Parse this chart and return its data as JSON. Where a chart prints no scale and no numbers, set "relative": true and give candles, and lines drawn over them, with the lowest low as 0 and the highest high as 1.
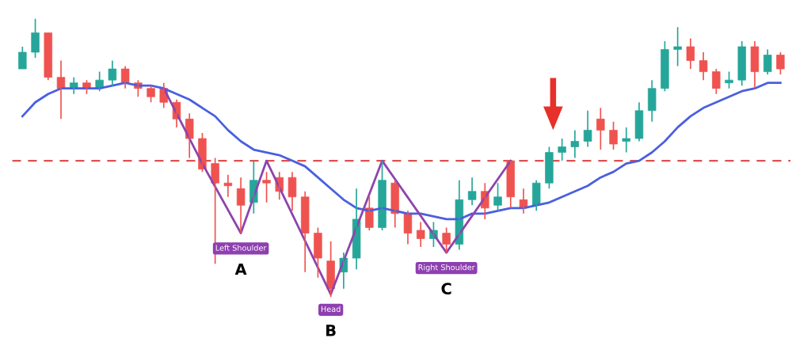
{
  "chart_data": {
    "type": "candlestick",
    "relative": true,
    "categories": [
      null,
      null,
      null,
      null,
      null,
      null,
      null,
      null,
      null,
      null,
      null,
      null,
      null,
      null,
      null,
      null,
      null,
      null,
      null,
      null,
      null,
      null,
      null,
      null,
      null,
      null,
      null,
      null,
      null,
      null,
      null,
      null,
      null,
      null,
      null,
      null,
      null,
      null,
      null,
      null,
      null,
      null,
      null,
      null,
      null,
      null,
      null,
      null,
      null,
      null,
      null,
      null,
      null,
      null,
      null,
      null,
      null,
      null,
      null,
      null
    ],
    "ohlc": [
      [
        0.82,
        0.9,
        0.82,
        0.88
      ],
      [
        0.88,
        1.0,
        0.86,
        0.95
      ],
      [
        0.95,
        0.95,
        0.78,
        0.79
      ],
      [
        0.79,
        0.85,
        0.64,
        0.75
      ],
      [
        0.75,
        0.79,
        0.73,
        0.77
      ],
      [
        0.77,
        0.78,
        0.73,
        0.75
      ],
      [
        0.75,
        0.81,
        0.74,
        0.78
      ],
      [
        0.78,
        0.85,
        0.76,
        0.82
      ],
      [
        0.82,
        0.83,
        0.75,
        0.77
      ],
      [
        0.77,
        0.78,
        0.72,
        0.75
      ],
      [
        0.75,
        0.76,
        0.7,
        0.72
      ],
      [
        0.75,
        0.77,
        0.68,
        0.7
      ],
      [
        0.7,
        0.71,
        0.61,
        0.64
      ],
      [
        0.64,
        0.66,
        0.5,
        0.57
      ],
      [
        0.57,
        0.59,
        0.45,
        0.46
      ],
      [
        0.48,
        0.5,
        0.12,
        0.41
      ],
      [
        0.41,
        0.44,
        0.36,
        0.4
      ],
      [
        0.39,
        0.43,
        0.23,
        0.33
      ],
      [
        0.34,
        0.49,
        0.3,
        0.42
      ],
      [
        0.42,
        0.45,
        0.34,
        0.41
      ],
      [
        0.43,
        0.45,
        0.35,
        0.38
      ],
      [
        0.43,
        0.45,
        0.31,
        0.36
      ],
      [
        0.36,
        0.38,
        0.09,
        0.23
      ],
      [
        0.23,
        0.25,
        0.07,
        0.14
      ],
      [
        0.13,
        0.2,
        0.0,
        0.03
      ],
      [
        0.09,
        0.16,
        0.03,
        0.14
      ],
      [
        0.14,
        0.39,
        0.1,
        0.28
      ],
      [
        0.32,
        0.36,
        0.24,
        0.25
      ],
      [
        0.25,
        0.49,
        0.24,
        0.42
      ],
      [
        0.41,
        0.42,
        0.25,
        0.3
      ],
      [
        0.3,
        0.31,
        0.19,
        0.23
      ],
      [
        0.24,
        0.27,
        0.18,
        0.21
      ],
      [
        0.21,
        0.27,
        0.18,
        0.24
      ],
      [
        0.23,
        0.25,
        0.16,
        0.19
      ],
      [
        0.19,
        0.42,
        0.17,
        0.35
      ],
      [
        0.35,
        0.43,
        0.33,
        0.38
      ],
      [
        0.38,
        0.41,
        0.28,
        0.32
      ],
      [
        0.33,
        0.41,
        0.31,
        0.36
      ],
      [
        0.49,
        0.49,
        0.32,
        0.36
      ],
      [
        0.35,
        0.39,
        0.3,
        0.32
      ],
      [
        0.33,
        0.42,
        0.31,
        0.41
      ],
      [
        0.41,
        0.54,
        0.39,
        0.52
      ],
      [
        0.52,
        0.57,
        0.49,
        0.54
      ],
      [
        0.54,
        0.6,
        0.5,
        0.56
      ],
      [
        0.56,
        0.67,
        0.54,
        0.6
      ],
      [
        0.64,
        0.68,
        0.53,
        0.6
      ],
      [
        0.6,
        0.63,
        0.53,
        0.55
      ],
      [
        0.56,
        0.61,
        0.52,
        0.57
      ],
      [
        0.57,
        0.7,
        0.56,
        0.67
      ],
      [
        0.67,
        0.78,
        0.63,
        0.75
      ],
      [
        0.75,
        0.92,
        0.74,
        0.89
      ],
      [
        0.89,
        0.97,
        0.83,
        0.9
      ],
      [
        0.9,
        0.93,
        0.82,
        0.85
      ],
      [
        0.85,
        0.88,
        0.78,
        0.81
      ],
      [
        0.81,
        0.82,
        0.73,
        0.75
      ],
      [
        0.77,
        0.81,
        0.75,
        0.78
      ],
      [
        0.78,
        0.92,
        0.76,
        0.9
      ],
      [
        0.9,
        0.92,
        0.75,
        0.81
      ],
      [
        0.81,
        0.89,
        0.8,
        0.87
      ],
      [
        0.87,
        0.88,
        0.8,
        0.82
      ]
    ],
    "colors": [
      "#26a69a",
      "#26a69a",
      "#ef5350",
      "#ef5350",
      "#26a69a",
      "#ef5350",
      "#26a69a",
      "#26a69a",
      "#ef5350",
      "#ef5350",
      "#ef5350",
      "#ef5350",
      "#ef5350",
      "#ef5350",
      "#ef5350",
      "#ef5350",
      "#ef5350",
      "#ef5350",
      "#26a69a",
      "#ef5350",
      "#ef5350",
      "#ef5350",
      "#ef5350",
      "#ef5350",
      "#ef5350",
      "#26a69a",
      "#26a69a",
      "#ef5350",
      "#26a69a",
      "#ef5350",
      "#ef5350",
      "#ef5350",
      "#26a69a",
      "#ef5350",
      "#26a69a",
      "#26a69a",
      "#ef5350",
      "#26a69a",
      "#ef5350",
      "#ef5350",
      "#26a69a",
      "#26a69a",
      "#26a69a",
      "#26a69a",
      "#26a69a",
      "#ef5350",
      "#ef5350",
      "#26a69a",
      "#26a69a",
      "#26a69a",
      "#26a69a",
      "#26a69a",
      "#ef5350",
      "#ef5350",
      "#ef5350",
      "#26a69a",
      "#26a69a",
      "#ef5350",
      "#26a69a",
      "#ef5350"
    ],
    "series": [
      {
        "type": "line",
        "color": "#4a5fe0",
        "values": [
          0.65,
          0.7,
          0.73,
          0.75,
          0.75,
          0.75,
          0.75,
          0.76,
          0.77,
          0.76,
          0.76,
          0.75,
          0.73,
          0.71,
          0.68,
          0.65,
          0.6,
          0.56,
          0.53,
          0.52,
          0.51,
          0.49,
          0.47,
          0.43,
          0.39,
          0.35,
          0.32,
          0.31,
          0.32,
          0.31,
          0.3,
          0.3,
          0.29,
          0.28,
          0.28,
          0.3,
          0.3,
          0.31,
          0.32,
          0.32,
          0.33,
          0.34,
          0.36,
          0.38,
          0.4,
          0.43,
          0.45,
          0.48,
          0.49,
          0.52,
          0.56,
          0.61,
          0.65,
          0.68,
          0.7,
          0.72,
          0.74,
          0.75,
          0.77,
          0.77
        ]
      },
      {
        "type": "line",
        "color": "#8e44ad",
        "values": [
          null,
          null,
          null,
          null,
          null,
          null,
          null,
          null,
          null,
          null,
          null,
          0.75,
          null,
          null,
          0.48,
          null,
          null,
          0.23,
          null,
          0.49,
          null,
          null,
          null,
          null,
          0.01,
          null,
          null,
          null,
          0.49,
          null,
          null,
          null,
          null,
          0.16,
          null,
          null,
          null,
          null,
          0.49,
          null,
          null,
          null,
          null,
          null,
          null,
          null,
          null,
          null,
          null,
          null,
          null,
          null,
          null,
          null,
          null,
          null,
          null,
          null,
          null,
          null
        ]
      }
    ],
    "ref_lines": [
      {
        "axis": "y",
        "value": 0.49,
        "color": "#e05050",
        "line_style": "dashed"
      }
    ],
    "annotations": [
      "Left Shoulder",
      "A",
      "Head",
      "B",
      "Right Shoulder",
      "C"
    ]
  }
}
